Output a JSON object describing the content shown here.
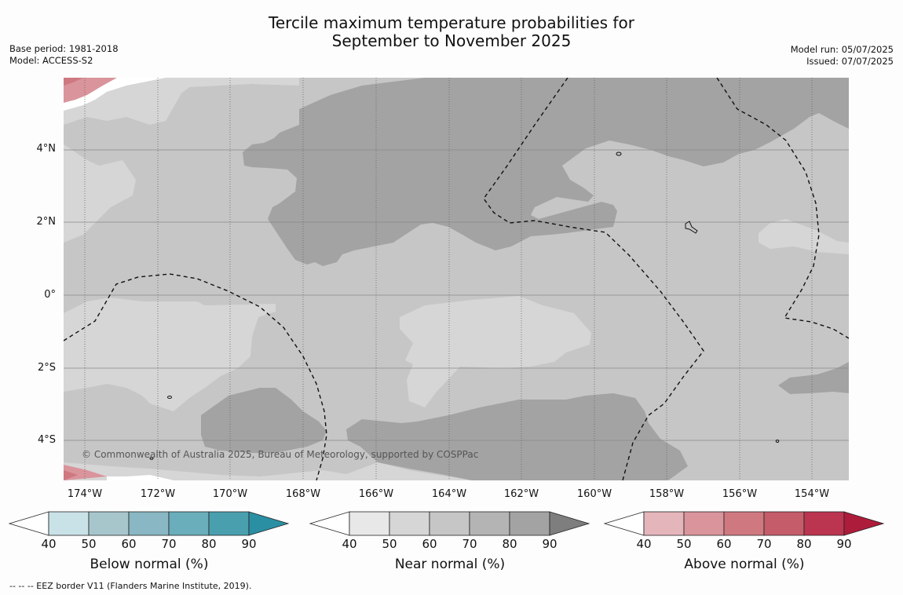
{
  "title": {
    "line1": "Tercile maximum temperature probabilities for",
    "line2": "September to November 2025"
  },
  "meta_left": {
    "base_period": "Base period: 1981-2018",
    "model": "Model: ACCESS-S2"
  },
  "meta_right": {
    "model_run": "Model run: 05/07/2025",
    "issued": "Issued: 07/07/2025"
  },
  "copyright": "© Commonwealth of Australia 2025, Bureau of Meteorology, supported by COSPPac",
  "lat_labels": [
    "4°N",
    "2°N",
    "0°",
    "2°S",
    "4°S"
  ],
  "lon_labels": [
    "174°W",
    "172°W",
    "170°W",
    "168°W",
    "166°W",
    "164°W",
    "162°W",
    "160°W",
    "158°W",
    "156°W",
    "154°W"
  ],
  "colorbars": [
    {
      "label": "Below normal (%)",
      "ticks": [
        "40",
        "50",
        "60",
        "70",
        "80",
        "90"
      ],
      "colors": [
        "#ffffff",
        "#c9e2e8",
        "#a6c6cc",
        "#89b7c3",
        "#6aaebb",
        "#4a9fae",
        "#2b8fa3"
      ]
    },
    {
      "label": "Near normal (%)",
      "ticks": [
        "40",
        "50",
        "60",
        "70",
        "80",
        "90"
      ],
      "colors": [
        "#ffffff",
        "#e8e8e8",
        "#d6d6d6",
        "#c6c6c6",
        "#b4b4b4",
        "#a3a3a3",
        "#7e7e7e"
      ]
    },
    {
      "label": "Above normal (%)",
      "ticks": [
        "40",
        "50",
        "60",
        "70",
        "80",
        "90"
      ],
      "colors": [
        "#ffffff",
        "#e4b6bb",
        "#da949b",
        "#cf7880",
        "#c55c69",
        "#bb3550",
        "#ad1c3a"
      ]
    }
  ],
  "footer": "-- -- -- EEZ border V11 (Flanders Marine Institute, 2019)."
}
